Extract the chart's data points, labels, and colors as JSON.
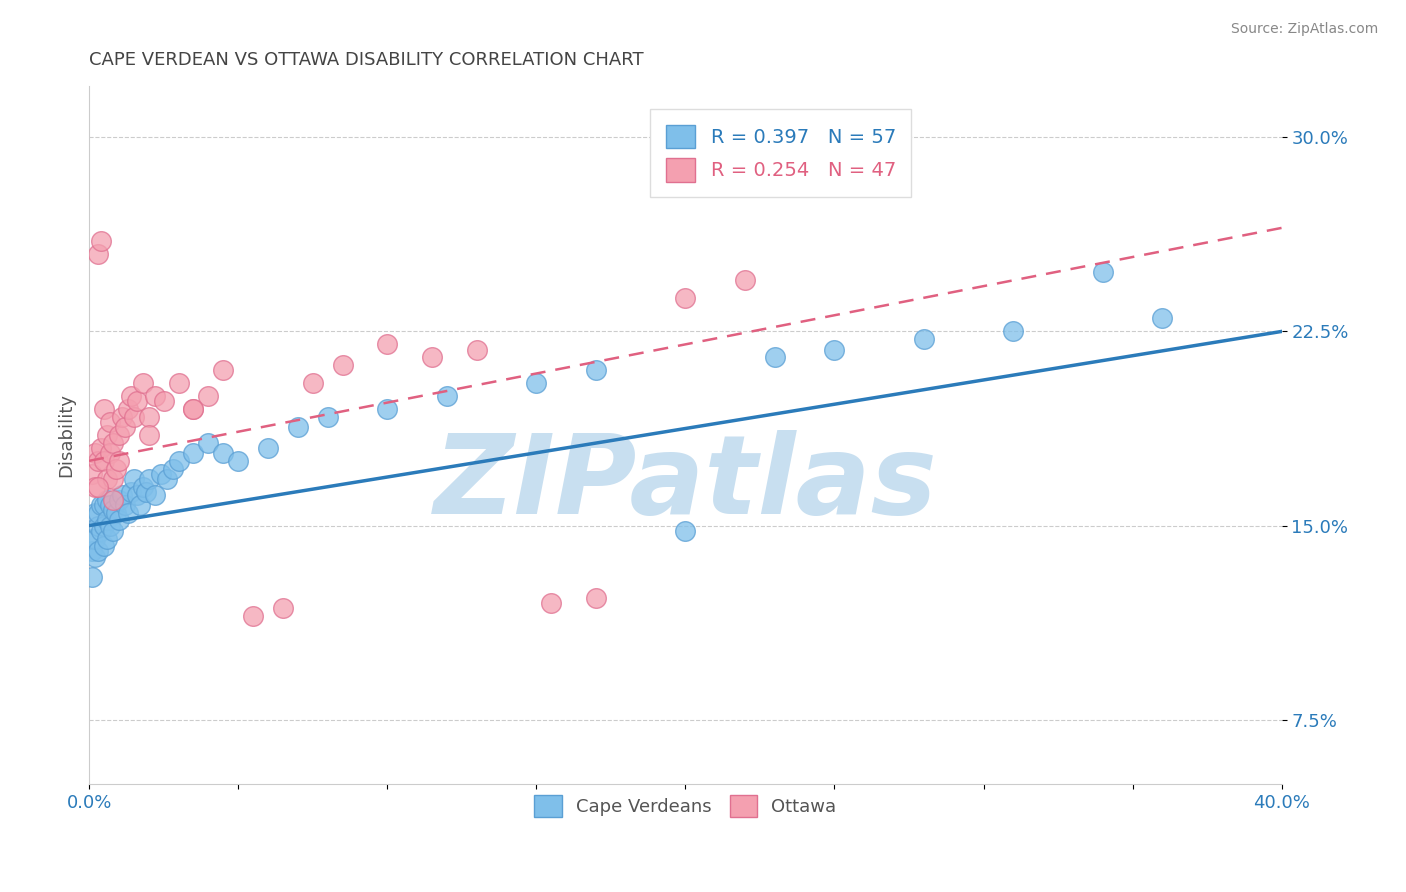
{
  "title": "CAPE VERDEAN VS OTTAWA DISABILITY CORRELATION CHART",
  "source": "Source: ZipAtlas.com",
  "ylabel": "Disability",
  "xlim": [
    0.0,
    0.4
  ],
  "ylim": [
    0.05,
    0.32
  ],
  "yticks": [
    0.075,
    0.15,
    0.225,
    0.3
  ],
  "ytick_labels": [
    "7.5%",
    "15.0%",
    "22.5%",
    "30.0%"
  ],
  "xticks": [
    0.0,
    0.05,
    0.1,
    0.15,
    0.2,
    0.25,
    0.3,
    0.35,
    0.4
  ],
  "xtick_labels": [
    "0.0%",
    "",
    "",
    "",
    "",
    "",
    "",
    "",
    "40.0%"
  ],
  "blue_R": 0.397,
  "blue_N": 57,
  "pink_R": 0.254,
  "pink_N": 47,
  "blue_color": "#7fbfea",
  "pink_color": "#f4a0b0",
  "blue_edge_color": "#5a9fd4",
  "pink_edge_color": "#e07090",
  "blue_line_color": "#2b7bba",
  "pink_line_color": "#e06080",
  "watermark_color": "#c8dff0",
  "legend_label_blue": "Cape Verdeans",
  "legend_label_pink": "Ottawa",
  "blue_scatter_x": [
    0.001,
    0.001,
    0.001,
    0.002,
    0.002,
    0.002,
    0.003,
    0.003,
    0.003,
    0.004,
    0.004,
    0.005,
    0.005,
    0.005,
    0.006,
    0.006,
    0.006,
    0.007,
    0.007,
    0.008,
    0.008,
    0.009,
    0.01,
    0.01,
    0.011,
    0.012,
    0.013,
    0.014,
    0.015,
    0.016,
    0.017,
    0.018,
    0.019,
    0.02,
    0.022,
    0.024,
    0.026,
    0.028,
    0.03,
    0.035,
    0.04,
    0.045,
    0.05,
    0.06,
    0.07,
    0.08,
    0.1,
    0.12,
    0.15,
    0.17,
    0.2,
    0.23,
    0.25,
    0.28,
    0.31,
    0.34,
    0.36
  ],
  "blue_scatter_y": [
    0.13,
    0.14,
    0.145,
    0.138,
    0.145,
    0.155,
    0.14,
    0.15,
    0.155,
    0.148,
    0.158,
    0.142,
    0.15,
    0.158,
    0.145,
    0.152,
    0.16,
    0.15,
    0.158,
    0.148,
    0.156,
    0.155,
    0.16,
    0.152,
    0.162,
    0.158,
    0.155,
    0.163,
    0.168,
    0.162,
    0.158,
    0.165,
    0.163,
    0.168,
    0.162,
    0.17,
    0.168,
    0.172,
    0.175,
    0.178,
    0.182,
    0.178,
    0.175,
    0.18,
    0.188,
    0.192,
    0.195,
    0.2,
    0.205,
    0.21,
    0.148,
    0.215,
    0.218,
    0.222,
    0.225,
    0.248,
    0.23
  ],
  "pink_scatter_x": [
    0.001,
    0.002,
    0.002,
    0.003,
    0.003,
    0.004,
    0.004,
    0.005,
    0.005,
    0.006,
    0.006,
    0.007,
    0.007,
    0.008,
    0.008,
    0.009,
    0.01,
    0.01,
    0.011,
    0.012,
    0.013,
    0.014,
    0.015,
    0.016,
    0.018,
    0.02,
    0.022,
    0.025,
    0.03,
    0.035,
    0.04,
    0.045,
    0.055,
    0.065,
    0.075,
    0.085,
    0.1,
    0.115,
    0.13,
    0.155,
    0.17,
    0.2,
    0.22,
    0.003,
    0.008,
    0.02,
    0.035
  ],
  "pink_scatter_y": [
    0.17,
    0.165,
    0.178,
    0.255,
    0.175,
    0.26,
    0.18,
    0.195,
    0.175,
    0.185,
    0.168,
    0.178,
    0.19,
    0.168,
    0.182,
    0.172,
    0.185,
    0.175,
    0.192,
    0.188,
    0.195,
    0.2,
    0.192,
    0.198,
    0.205,
    0.192,
    0.2,
    0.198,
    0.205,
    0.195,
    0.2,
    0.21,
    0.115,
    0.118,
    0.205,
    0.212,
    0.22,
    0.215,
    0.218,
    0.12,
    0.122,
    0.238,
    0.245,
    0.165,
    0.16,
    0.185,
    0.195
  ]
}
